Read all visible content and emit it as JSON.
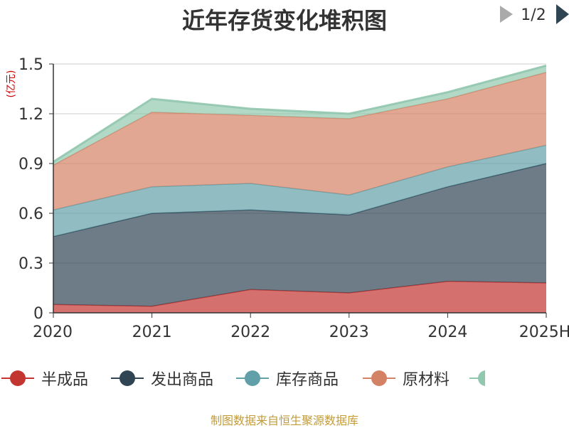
{
  "chart_data": {
    "type": "area",
    "stacked": true,
    "title": "近年存货变化堆积图",
    "unit_label": "(亿元)",
    "categories": [
      "2020",
      "2021",
      "2022",
      "2023",
      "2024",
      "2025H"
    ],
    "ylim": [
      0,
      1.5
    ],
    "yticks": [
      0,
      0.3,
      0.6,
      0.9,
      1.2,
      1.5
    ],
    "ytick_labels": [
      "0",
      "0.3",
      "0.6",
      "0.9",
      "1.2",
      "1.5"
    ],
    "grid": true,
    "legend_position": "bottom",
    "series": [
      {
        "name": "半成品",
        "color": "#c23531",
        "values": [
          0.05,
          0.04,
          0.14,
          0.12,
          0.19,
          0.18
        ]
      },
      {
        "name": "发出商品",
        "color": "#2f4554",
        "values": [
          0.41,
          0.56,
          0.48,
          0.47,
          0.57,
          0.72
        ]
      },
      {
        "name": "库存商品",
        "color": "#61a0a8",
        "values": [
          0.16,
          0.16,
          0.16,
          0.12,
          0.12,
          0.11
        ]
      },
      {
        "name": "原材料",
        "color": "#d48265",
        "values": [
          0.27,
          0.45,
          0.41,
          0.46,
          0.41,
          0.44
        ]
      },
      {
        "name": "",
        "color": "#91c7ae",
        "values": [
          0.02,
          0.08,
          0.04,
          0.03,
          0.04,
          0.04
        ]
      }
    ]
  },
  "legend": {
    "page_text": "1/2"
  },
  "footer": {
    "source": "制图数据来自恒生聚源数据库"
  },
  "colors": {
    "text": "#333333",
    "grid": "#cccccc",
    "unit_label": "#cc0000",
    "source": "#c29b3a",
    "pager_prev_disabled": "#aaaaaa",
    "pager_next": "#2f4554"
  }
}
